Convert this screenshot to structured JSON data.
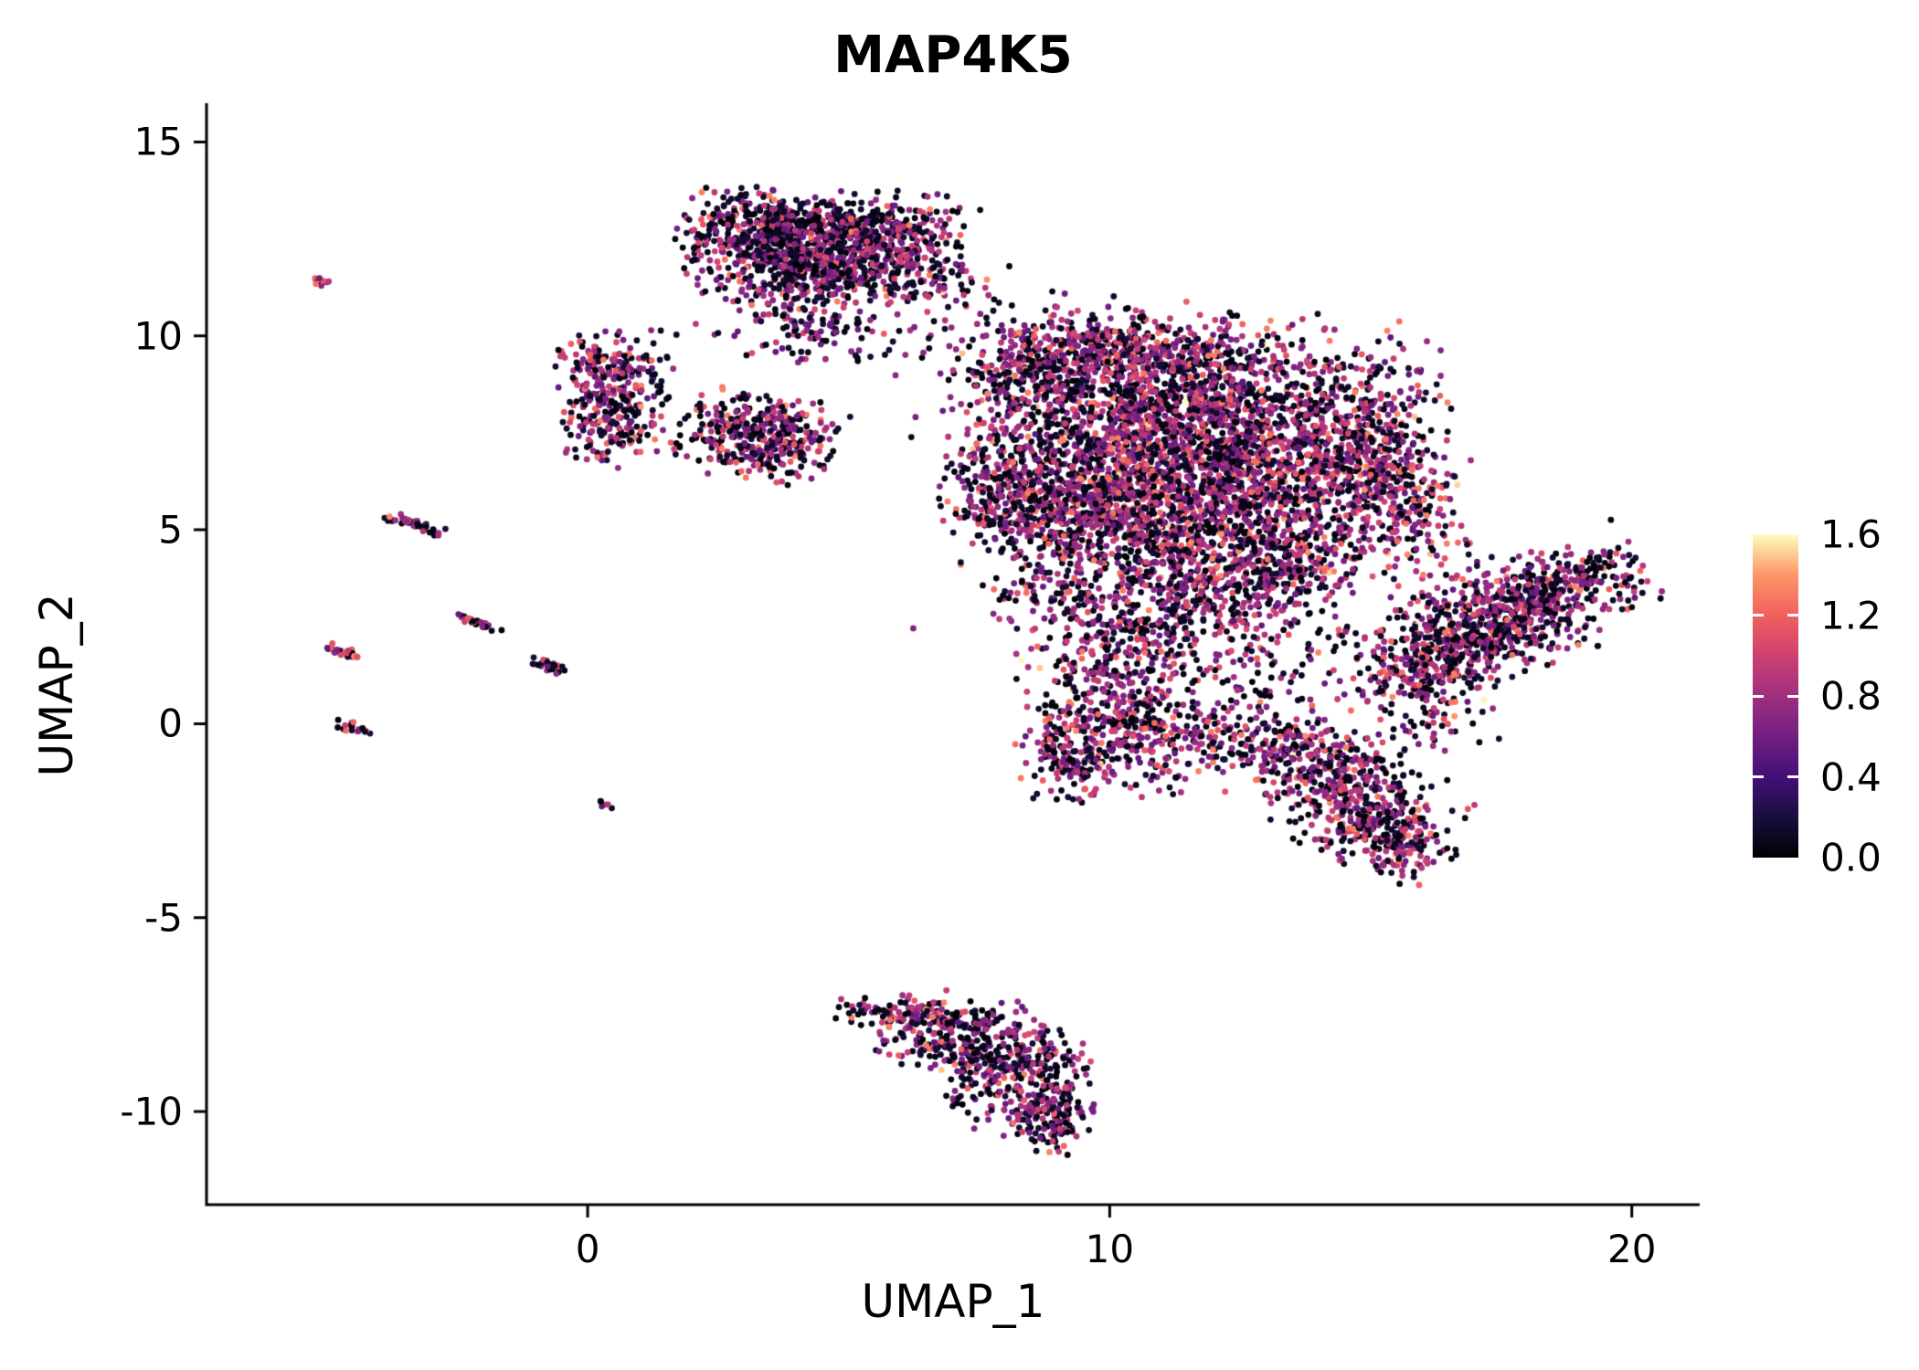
{
  "chart_data": {
    "type": "scatter",
    "title": "MAP4K5",
    "xlabel": "UMAP_1",
    "ylabel": "UMAP_2",
    "xlim": [
      -7.3,
      21.3
    ],
    "ylim": [
      -12.4,
      16.0
    ],
    "grid": false,
    "background": "#ffffff",
    "axis_color": "#000000",
    "point_radius_px": 3.4,
    "x_ticks": [
      0,
      10,
      20
    ],
    "x_tick_labels": [
      "0",
      "10",
      "20"
    ],
    "y_ticks": [
      -10,
      -5,
      0,
      5,
      10,
      15
    ],
    "y_tick_labels": [
      "-10",
      "-5",
      "0",
      "5",
      "10",
      "15"
    ],
    "legend": {
      "position": "right",
      "min": 0,
      "max": 1.6,
      "tick_values": [
        0,
        0.4,
        0.8,
        1.2,
        1.6
      ],
      "tick_labels": [
        "0.0",
        "0.4",
        "0.8",
        "1.2",
        "1.6"
      ],
      "colormap": "magma",
      "colormap_stops": [
        "#000004",
        "#180f3e",
        "#440f76",
        "#721f81",
        "#9e2f7f",
        "#cd4071",
        "#f1605d",
        "#fd9668",
        "#fcfdbf"
      ]
    },
    "expr_weights_default": [
      0.45,
      0.44,
      0.11
    ],
    "clusters": [
      {
        "name": "top-blob-a",
        "cx": 3.6,
        "cy": 12.7,
        "sx": 0.85,
        "sy": 0.5,
        "rot": -8,
        "n": 480,
        "expr": [
          0.5,
          0.42,
          0.08
        ]
      },
      {
        "name": "top-blob-b",
        "cx": 5.2,
        "cy": 12.5,
        "sx": 0.85,
        "sy": 0.55,
        "rot": 6,
        "n": 430,
        "expr": [
          0.5,
          0.42,
          0.08
        ]
      },
      {
        "name": "top-blob-c",
        "cx": 4.4,
        "cy": 11.7,
        "sx": 1.15,
        "sy": 0.45,
        "rot": 0,
        "n": 330,
        "expr": [
          0.5,
          0.42,
          0.08
        ]
      },
      {
        "name": "top-blob-tail",
        "cx": 4.0,
        "cy": 10.7,
        "sx": 0.75,
        "sy": 0.55,
        "rot": -30,
        "n": 110,
        "expr": [
          0.5,
          0.42,
          0.08
        ]
      },
      {
        "name": "top-blob-right",
        "cx": 6.7,
        "cy": 11.9,
        "sx": 0.65,
        "sy": 0.75,
        "rot": 0,
        "n": 80,
        "expr": [
          0.5,
          0.42,
          0.08
        ]
      },
      {
        "name": "top-blob-below",
        "cx": 4.4,
        "cy": 9.9,
        "sx": 1.1,
        "sy": 0.45,
        "rot": 0,
        "n": 55,
        "expr": [
          0.5,
          0.42,
          0.08
        ]
      },
      {
        "name": "top-blob-stray",
        "cx": 7.2,
        "cy": 10.7,
        "sx": 0.75,
        "sy": 0.65,
        "rot": 0,
        "n": 30,
        "expr": [
          0.5,
          0.42,
          0.08
        ]
      },
      {
        "name": "left-blob-upper",
        "cx": 0.45,
        "cy": 9.2,
        "sx": 0.55,
        "sy": 0.42,
        "rot": 0,
        "n": 150
      },
      {
        "name": "left-blob-lower",
        "cx": 0.5,
        "cy": 7.7,
        "sx": 0.5,
        "sy": 0.48,
        "rot": 0,
        "n": 160
      },
      {
        "name": "left-blob-waist",
        "cx": 0.45,
        "cy": 8.45,
        "sx": 0.38,
        "sy": 0.3,
        "rot": 0,
        "n": 40
      },
      {
        "name": "mid-blob",
        "cx": 3.3,
        "cy": 7.4,
        "sx": 0.72,
        "sy": 0.52,
        "rot": -10,
        "n": 400
      },
      {
        "name": "mass-ul",
        "cx": 8.6,
        "cy": 9.3,
        "sx": 0.75,
        "sy": 0.65,
        "rot": 0,
        "n": 330,
        "expr": [
          0.42,
          0.45,
          0.13
        ]
      },
      {
        "name": "mass-up",
        "cx": 10.2,
        "cy": 9.6,
        "sx": 0.95,
        "sy": 0.5,
        "rot": 0,
        "n": 280,
        "expr": [
          0.42,
          0.45,
          0.13
        ]
      },
      {
        "name": "mass-ur",
        "cx": 11.8,
        "cy": 8.9,
        "sx": 1.15,
        "sy": 0.75,
        "rot": 0,
        "n": 480,
        "expr": [
          0.42,
          0.45,
          0.13
        ]
      },
      {
        "name": "mass-core-a",
        "cx": 10.3,
        "cy": 7.4,
        "sx": 1.25,
        "sy": 0.85,
        "rot": 0,
        "n": 680,
        "expr": [
          0.42,
          0.45,
          0.13
        ]
      },
      {
        "name": "mass-core-b",
        "cx": 12.6,
        "cy": 6.7,
        "sx": 1.15,
        "sy": 0.95,
        "rot": 0,
        "n": 780,
        "expr": [
          0.42,
          0.45,
          0.13
        ]
      },
      {
        "name": "mass-low-a",
        "cx": 9.3,
        "cy": 5.6,
        "sx": 0.95,
        "sy": 0.75,
        "rot": 0,
        "n": 480,
        "expr": [
          0.42,
          0.45,
          0.13
        ]
      },
      {
        "name": "mass-low-b",
        "cx": 11.3,
        "cy": 5.0,
        "sx": 1.15,
        "sy": 0.65,
        "rot": 0,
        "n": 430,
        "expr": [
          0.42,
          0.45,
          0.13
        ]
      },
      {
        "name": "mass-left-edge",
        "cx": 7.9,
        "cy": 6.2,
        "sx": 0.55,
        "sy": 0.85,
        "rot": 0,
        "n": 230,
        "expr": [
          0.42,
          0.45,
          0.13
        ]
      },
      {
        "name": "mass-right-lobe",
        "cx": 14.6,
        "cy": 7.6,
        "sx": 0.85,
        "sy": 1.15,
        "rot": 0,
        "n": 430,
        "expr": [
          0.42,
          0.45,
          0.13
        ]
      },
      {
        "name": "mass-right-low",
        "cx": 15.5,
        "cy": 6.1,
        "sx": 0.55,
        "sy": 0.75,
        "rot": 0,
        "n": 190,
        "expr": [
          0.42,
          0.45,
          0.13
        ]
      },
      {
        "name": "mass-halo",
        "cx": 11.5,
        "cy": 6.8,
        "sx": 2.4,
        "sy": 1.9,
        "rot": 0,
        "n": 380,
        "expr": [
          0.42,
          0.45,
          0.13
        ]
      },
      {
        "name": "mass-bottom-a",
        "cx": 13.8,
        "cy": 4.3,
        "sx": 0.75,
        "sy": 0.7,
        "rot": 0,
        "n": 240,
        "expr": [
          0.42,
          0.45,
          0.13
        ]
      },
      {
        "name": "mass-bottom-b",
        "cx": 12.3,
        "cy": 3.6,
        "sx": 0.95,
        "sy": 0.6,
        "rot": 0,
        "n": 220,
        "expr": [
          0.42,
          0.45,
          0.13
        ]
      },
      {
        "name": "mass-bottom-c",
        "cx": 8.7,
        "cy": 3.9,
        "sx": 0.55,
        "sy": 0.65,
        "rot": 0,
        "n": 90,
        "expr": [
          0.42,
          0.45,
          0.13
        ]
      },
      {
        "name": "ext-ll-a",
        "cx": 10.0,
        "cy": 1.6,
        "sx": 0.85,
        "sy": 1.1,
        "rot": 0,
        "n": 330,
        "expr": [
          0.42,
          0.45,
          0.13
        ]
      },
      {
        "name": "ext-ll-b",
        "cx": 10.8,
        "cy": -0.4,
        "sx": 0.95,
        "sy": 0.65,
        "rot": 0,
        "n": 280,
        "expr": [
          0.42,
          0.45,
          0.13
        ]
      },
      {
        "name": "ext-ll-c",
        "cx": 9.3,
        "cy": -0.8,
        "sx": 0.5,
        "sy": 0.55,
        "rot": 0,
        "n": 140,
        "expr": [
          0.42,
          0.45,
          0.13
        ]
      },
      {
        "name": "ext-ll-top",
        "cx": 10.6,
        "cy": 2.9,
        "sx": 1.1,
        "sy": 0.7,
        "rot": 0,
        "n": 140,
        "expr": [
          0.42,
          0.45,
          0.13
        ]
      },
      {
        "name": "bridge-sparse",
        "cx": 12.5,
        "cy": 1.8,
        "sx": 1.3,
        "sy": 1.0,
        "rot": 0,
        "n": 160,
        "expr": [
          0.42,
          0.45,
          0.13
        ]
      },
      {
        "name": "lr-blob-a",
        "cx": 13.7,
        "cy": -0.8,
        "sx": 0.9,
        "sy": 0.55,
        "rot": -25,
        "n": 280,
        "expr": [
          0.42,
          0.45,
          0.13
        ]
      },
      {
        "name": "lr-blob-b",
        "cx": 14.8,
        "cy": -2.1,
        "sx": 0.8,
        "sy": 0.65,
        "rot": -35,
        "n": 330,
        "expr": [
          0.42,
          0.45,
          0.13
        ]
      },
      {
        "name": "lr-blob-tip",
        "cx": 15.5,
        "cy": -3.1,
        "sx": 0.5,
        "sy": 0.4,
        "rot": -35,
        "n": 110,
        "expr": [
          0.42,
          0.45,
          0.13
        ]
      },
      {
        "name": "lr-sparse",
        "cx": 16.2,
        "cy": 0.2,
        "sx": 0.6,
        "sy": 0.5,
        "rot": 0,
        "n": 60,
        "expr": [
          0.42,
          0.45,
          0.13
        ]
      },
      {
        "name": "wing-core",
        "cx": 17.3,
        "cy": 2.6,
        "sx": 1.5,
        "sy": 0.7,
        "rot": 25,
        "n": 650
      },
      {
        "name": "wing-tip-hi",
        "cx": 18.5,
        "cy": 3.5,
        "sx": 0.8,
        "sy": 0.4,
        "rot": 25,
        "n": 190
      },
      {
        "name": "wing-tip-lo",
        "cx": 16.2,
        "cy": 1.5,
        "sx": 0.7,
        "sy": 0.4,
        "rot": 25,
        "n": 190
      },
      {
        "name": "wing-bridge",
        "cx": 16.0,
        "cy": 4.8,
        "sx": 0.5,
        "sy": 0.5,
        "rot": 0,
        "n": 50
      },
      {
        "name": "bottom-a",
        "cx": 7.2,
        "cy": -8.1,
        "sx": 0.95,
        "sy": 0.5,
        "rot": -12,
        "n": 280,
        "expr": [
          0.5,
          0.4,
          0.1
        ]
      },
      {
        "name": "bottom-b",
        "cx": 8.3,
        "cy": -9.2,
        "sx": 0.65,
        "sy": 0.6,
        "rot": 0,
        "n": 230,
        "expr": [
          0.5,
          0.4,
          0.1
        ]
      },
      {
        "name": "bottom-tip",
        "cx": 8.8,
        "cy": -10.2,
        "sx": 0.4,
        "sy": 0.45,
        "rot": 0,
        "n": 110,
        "expr": [
          0.5,
          0.4,
          0.1
        ]
      },
      {
        "name": "bottom-edge",
        "cx": 6.9,
        "cy": -7.6,
        "sx": 1.0,
        "sy": 0.15,
        "rot": -8,
        "n": 130,
        "expr": [
          0.5,
          0.4,
          0.1
        ]
      },
      {
        "name": "streak-1",
        "cx": -5.1,
        "cy": 11.4,
        "sx": 0.16,
        "sy": 0.05,
        "rot": -25,
        "n": 14,
        "expr": [
          0.25,
          0.35,
          0.4
        ]
      },
      {
        "name": "streak-2",
        "cx": -3.35,
        "cy": 5.15,
        "sx": 0.28,
        "sy": 0.07,
        "rot": -25,
        "n": 45
      },
      {
        "name": "streak-3",
        "cx": -2.1,
        "cy": 2.6,
        "sx": 0.22,
        "sy": 0.06,
        "rot": -25,
        "n": 34
      },
      {
        "name": "streak-4",
        "cx": -0.75,
        "cy": 1.5,
        "sx": 0.2,
        "sy": 0.06,
        "rot": -25,
        "n": 28
      },
      {
        "name": "streak-orange",
        "cx": -4.7,
        "cy": 1.85,
        "sx": 0.2,
        "sy": 0.07,
        "rot": -25,
        "n": 26,
        "expr": [
          0.1,
          0.3,
          0.6
        ]
      },
      {
        "name": "streak-5",
        "cx": -4.5,
        "cy": -0.1,
        "sx": 0.18,
        "sy": 0.06,
        "rot": -25,
        "n": 20
      },
      {
        "name": "dot-6",
        "cx": 0.35,
        "cy": -2.1,
        "sx": 0.07,
        "sy": 0.05,
        "rot": 0,
        "n": 6
      }
    ]
  }
}
